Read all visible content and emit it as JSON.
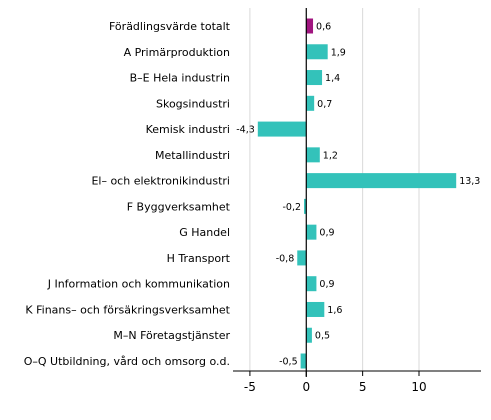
{
  "chart_data": {
    "type": "bar",
    "orientation": "horizontal",
    "categories": [
      "Förädlingsvärde totalt",
      "A Primärproduktion",
      "B–E Hela industrin",
      "Skogsindustri",
      "Kemisk industri",
      "Metallindustri",
      "El– och elektronikindustri",
      "F Byggverksamhet",
      "G Handel",
      "H Transport",
      "J Information och kommunikation",
      "K Finans– och försäkringsverksamhet",
      "M–N Företagstjänster",
      "O–Q Utbildning, vård och omsorg o.d."
    ],
    "values": [
      0.6,
      1.9,
      1.4,
      0.7,
      -4.3,
      1.2,
      13.3,
      -0.2,
      0.9,
      -0.8,
      0.9,
      1.6,
      0.5,
      -0.5
    ],
    "value_labels": [
      "0,6",
      "1,9",
      "1,4",
      "0,7",
      "-4,3",
      "1,2",
      "13,3",
      "-0,2",
      "0,9",
      "-0,8",
      "0,9",
      "1,6",
      "0,5",
      "-0,5"
    ],
    "bar_colors": [
      "#a0157f",
      "#33c2ba",
      "#33c2ba",
      "#33c2ba",
      "#33c2ba",
      "#33c2ba",
      "#33c2ba",
      "#33c2ba",
      "#33c2ba",
      "#33c2ba",
      "#33c2ba",
      "#33c2ba",
      "#33c2ba",
      "#33c2ba"
    ],
    "xlim": [
      -6.5,
      15.5
    ],
    "xticks": [
      -5,
      0,
      5,
      10
    ],
    "xtick_labels": [
      "-5",
      "0",
      "5",
      "10"
    ],
    "grid": "vertical",
    "title": "",
    "xlabel": "",
    "ylabel": ""
  }
}
